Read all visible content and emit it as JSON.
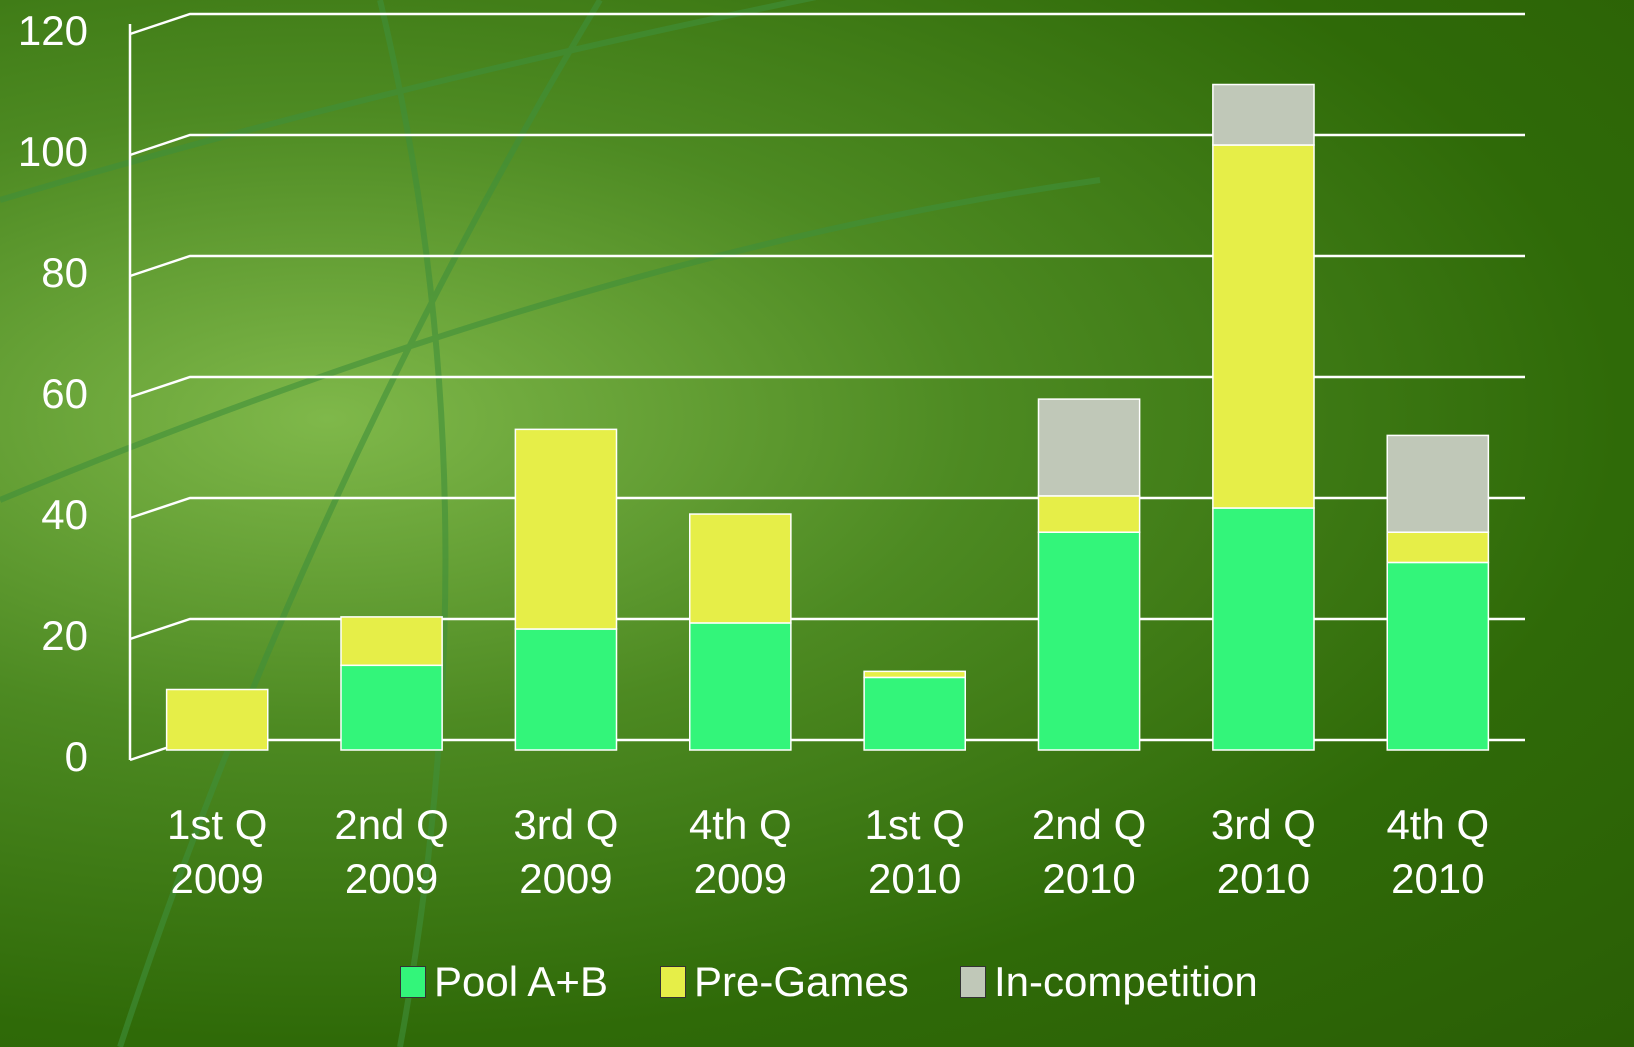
{
  "chart_data": {
    "type": "stacked_bar",
    "categories": [
      "1st Q\n2009",
      "2nd Q\n2009",
      "3rd Q\n2009",
      "4th Q\n2009",
      "1st Q\n2010",
      "2nd Q\n2010",
      "3rd Q\n2010",
      "4th Q\n2010"
    ],
    "series": [
      {
        "name": "Pool A+B",
        "color": "#33f57a",
        "values": [
          0,
          14,
          20,
          21,
          12,
          36,
          40,
          31
        ]
      },
      {
        "name": "Pre-Games",
        "color": "#e6ee48",
        "values": [
          10,
          8,
          33,
          18,
          1,
          6,
          60,
          5
        ]
      },
      {
        "name": "In-competition",
        "color": "#c0c8b8",
        "values": [
          0,
          0,
          0,
          0,
          0,
          16,
          10,
          16
        ]
      }
    ],
    "ylim": [
      0,
      120
    ],
    "yticks": [
      0,
      20,
      40,
      60,
      80,
      100,
      120
    ],
    "grid": true,
    "legend": "bottom"
  }
}
